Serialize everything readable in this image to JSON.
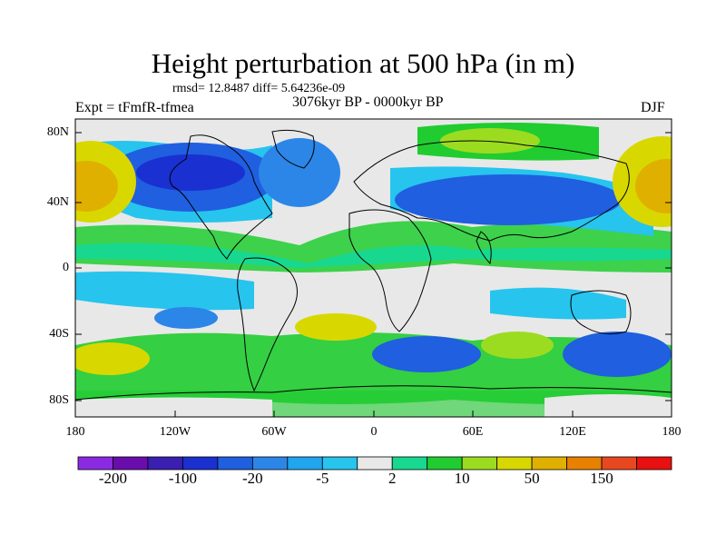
{
  "title": "Height perturbation at 500 hPa (in m)",
  "stats": "rmsd= 12.8487 diff= 5.64236e-09",
  "period": "3076kyr BP - 0000kyr BP",
  "experiment": "Expt = tFmfR-tfmea",
  "season": "DJF",
  "axes": {
    "lat_ticks": [
      "80N",
      "40N",
      "0",
      "40S",
      "80S"
    ],
    "lon_ticks": [
      "180",
      "120W",
      "60W",
      "0",
      "60E",
      "120E",
      "180"
    ]
  },
  "colorbar": {
    "colors": [
      "#8a2be2",
      "#6a0dad",
      "#3a1fb0",
      "#1a30d0",
      "#1f5fe0",
      "#2b86e8",
      "#1fa6ee",
      "#27c4ee",
      "#e8e8e8",
      "#18d890",
      "#20cc30",
      "#9cdc20",
      "#d8d800",
      "#e0b000",
      "#e88000",
      "#e84820",
      "#e81010"
    ],
    "labels": [
      "-200",
      "-100",
      "-20",
      "-5",
      "2",
      "10",
      "50",
      "150"
    ]
  },
  "map_colors": {
    "ocean_neutral": "#e8e8e8",
    "coastline": "#000000"
  }
}
